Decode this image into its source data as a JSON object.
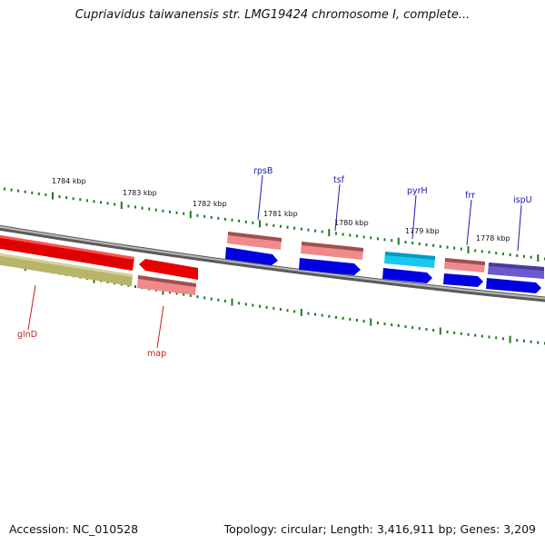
{
  "title": "Cupriavidus taiwanensis str. LMG19424 chromosome I, complete...",
  "footer": {
    "accession": "Accession: NC_010528",
    "topology": "Topology: circular; Length: 3,416,911 bp; Genes: 3,209"
  },
  "colors": {
    "backbone": "#7a7a7a",
    "tick": "#1f7a1f",
    "label_blue": "#1a1aa8",
    "label_red": "#c81e1e"
  },
  "ruler_labels": [
    "1784 kbp",
    "1783 kbp",
    "1782 kbp",
    "1781 kbp",
    "1780 kbp",
    "1779 kbp",
    "1778 kbp"
  ],
  "gene_labels": [
    "rpsB",
    "tsf",
    "pyrH",
    "frr",
    "ispU",
    "glnD",
    "map"
  ]
}
